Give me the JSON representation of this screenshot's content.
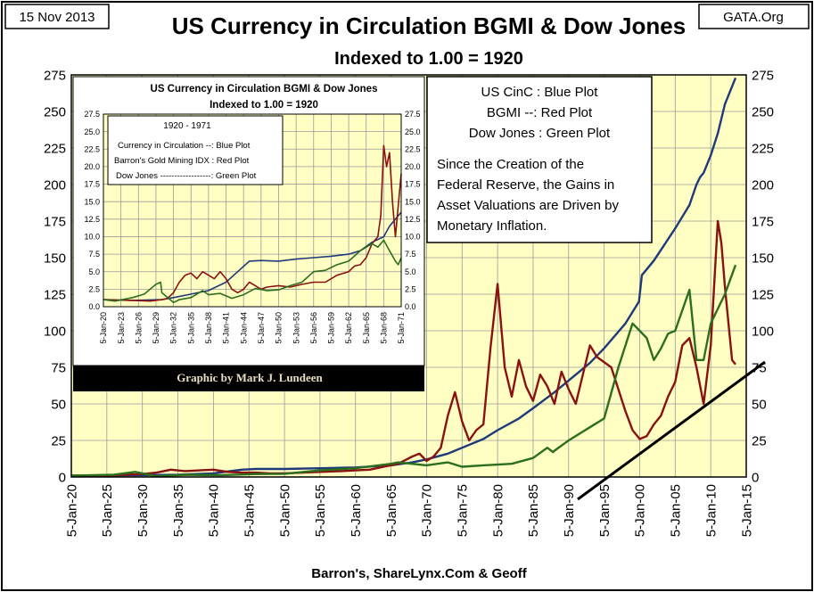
{
  "header": {
    "date_label": "15 Nov 2013",
    "source_label": "GATA.Org"
  },
  "chart_data": [
    {
      "type": "line",
      "title": "US Currency in Circulation BGMI & Dow Jones",
      "subtitle": "Indexed to 1.00 = 1920",
      "xlabel": "Barron's, ShareLynx.Com & Geoff",
      "ylabel": "",
      "xlim": [
        1920,
        2015
      ],
      "ylim": [
        0,
        275
      ],
      "y_ticks": [
        0,
        25,
        50,
        75,
        100,
        125,
        150,
        175,
        200,
        225,
        250,
        275
      ],
      "x_ticks": [
        "5-Jan-20",
        "5-Jan-25",
        "5-Jan-30",
        "5-Jan-35",
        "5-Jan-40",
        "5-Jan-45",
        "5-Jan-50",
        "5-Jan-55",
        "5-Jan-60",
        "5-Jan-65",
        "5-Jan-70",
        "5-Jan-75",
        "5-Jan-80",
        "5-Jan-85",
        "5-Jan-90",
        "5-Jan-95",
        "5-Jan-00",
        "5-Jan-05",
        "5-Jan-10",
        "5-Jan-15"
      ],
      "grid": true,
      "background": "#ffffc4",
      "legend_box": {
        "lines": [
          "US CinC :  Blue Plot",
          "BGMI --: Red Plot",
          "Dow Jones : Green Plot"
        ],
        "note_lines": [
          "Since the Creation of the",
          "Federal Reserve, the Gains in",
          "Asset Valuations are Driven by",
          "Monetary Inflation."
        ]
      },
      "credit_banner": "Graphic by Mark J. Lundeen",
      "series": [
        {
          "color": "#1f3a7a",
          "x": [
            1920,
            1930,
            1935,
            1940,
            1944,
            1946,
            1950,
            1955,
            1960,
            1965,
            1968,
            1970,
            1973,
            1975,
            1978,
            1980,
            1983,
            1985,
            1988,
            1990,
            1993,
            1995,
            1998,
            1999.9,
            2000.3,
            2002,
            2005,
            2007,
            2008,
            2008.5,
            2009,
            2010,
            2011,
            2012,
            2013.5
          ],
          "values": [
            1,
            1.2,
            1.5,
            2.5,
            5,
            5.5,
            5.5,
            6,
            6.5,
            8,
            10,
            12,
            16,
            20,
            26,
            32,
            40,
            47,
            58,
            66,
            78,
            88,
            105,
            120,
            138,
            148,
            170,
            186,
            200,
            205,
            208,
            220,
            235,
            255,
            273
          ]
        },
        {
          "color": "#8b1111",
          "x": [
            1920,
            1925,
            1930,
            1932,
            1934,
            1936,
            1938,
            1940,
            1942,
            1944,
            1946,
            1948,
            1950,
            1955,
            1958,
            1960,
            1962,
            1964,
            1966,
            1968,
            1969,
            1970,
            1971,
            1972,
            1973,
            1974,
            1975,
            1976,
            1977,
            1978,
            1979,
            1980,
            1981,
            1982,
            1983,
            1984,
            1985,
            1986,
            1987,
            1988,
            1989,
            1990,
            1991,
            1993,
            1994,
            1996,
            1997,
            1998,
            1999,
            2000,
            2001,
            2002,
            2003,
            2004,
            2005,
            2006,
            2007,
            2008,
            2009,
            2010,
            2011,
            2011.5,
            2012,
            2013,
            2013.5
          ],
          "values": [
            1,
            1,
            2,
            3,
            5,
            4,
            4.5,
            5,
            3.5,
            3,
            3,
            2.5,
            2.5,
            3.5,
            4,
            4.5,
            5,
            7,
            9,
            14,
            16,
            11,
            14,
            20,
            42,
            58,
            38,
            25,
            32,
            36,
            88,
            132,
            75,
            55,
            80,
            62,
            52,
            70,
            62,
            50,
            72,
            60,
            50,
            90,
            82,
            75,
            60,
            45,
            32,
            26,
            28,
            36,
            42,
            55,
            65,
            90,
            95,
            75,
            50,
            90,
            175,
            160,
            130,
            80,
            77
          ]
        },
        {
          "color": "#2d6e1e",
          "x": [
            1920,
            1926,
            1929,
            1932,
            1936,
            1941,
            1946,
            1950,
            1955,
            1960,
            1965,
            1966,
            1970,
            1973,
            1975,
            1978,
            1980,
            1982,
            1985,
            1987,
            1987.8,
            1988,
            1990,
            1993,
            1995,
            1997,
            1999,
            2000,
            2001,
            2002,
            2003,
            2004,
            2005,
            2007,
            2008,
            2009,
            2010,
            2011,
            2012,
            2013.5
          ],
          "values": [
            1,
            1.5,
            3.5,
            0.5,
            1.5,
            1.2,
            2,
            2.2,
            4.5,
            6,
            9,
            10,
            8,
            10,
            7,
            8,
            8.5,
            9,
            13,
            20,
            17,
            18,
            25,
            34,
            40,
            75,
            105,
            100,
            95,
            80,
            88,
            98,
            100,
            128,
            80,
            80,
            105,
            115,
            125,
            145
          ]
        }
      ]
    },
    {
      "type": "line",
      "title": "US Currency in Circulation BGMI & Dow Jones",
      "subtitle": "Indexed to 1.00 = 1920",
      "xlim": [
        1920,
        1971
      ],
      "ylim": [
        0,
        27.5
      ],
      "y_ticks": [
        0,
        2.5,
        5,
        7.5,
        10,
        12.5,
        15,
        17.5,
        20,
        22.5,
        25,
        27.5
      ],
      "x_ticks": [
        "5-Jan-20",
        "5-Jan-23",
        "5-Jan-26",
        "5-Jan-29",
        "5-Jan-32",
        "5-Jan-35",
        "5-Jan-38",
        "5-Jan-41",
        "5-Jan-44",
        "5-Jan-47",
        "5-Jan-50",
        "5-Jan-53",
        "5-Jan-56",
        "5-Jan-59",
        "5-Jan-62",
        "5-Jan-65",
        "5-Jan-68",
        "5-Jan-71"
      ],
      "legend_box": {
        "period": "1920 - 1971",
        "lines": [
          "Currency in Circulation --:  Blue Plot",
          "Barron's Gold Mining IDX : Red Plot",
          "Dow Jones ------------------: Green Plot"
        ]
      },
      "series": [
        {
          "color": "#1f3a7a",
          "x": [
            1920,
            1925,
            1930,
            1932,
            1935,
            1938,
            1941,
            1943,
            1945,
            1947,
            1950,
            1953,
            1956,
            1959,
            1962,
            1964,
            1966,
            1968,
            1969,
            1970,
            1971
          ],
          "values": [
            1,
            0.9,
            1,
            1.3,
            1.8,
            2.3,
            3.5,
            5,
            6.5,
            6.6,
            6.5,
            6.8,
            7,
            7.2,
            7.5,
            8,
            9.2,
            10,
            11.5,
            12.5,
            13.5
          ]
        },
        {
          "color": "#8b1111",
          "x": [
            1920,
            1925,
            1928,
            1930,
            1931,
            1932,
            1933,
            1934,
            1935,
            1936,
            1937,
            1938,
            1939,
            1940,
            1941,
            1942,
            1943,
            1944,
            1945,
            1946,
            1947,
            1948,
            1950,
            1952,
            1954,
            1956,
            1958,
            1960,
            1962,
            1963,
            1964,
            1965,
            1966,
            1967,
            1967.5,
            1968,
            1968.5,
            1969,
            1969.5,
            1970,
            1971
          ],
          "values": [
            1,
            0.9,
            0.8,
            1,
            1.2,
            2,
            3.5,
            4.5,
            4.8,
            4,
            5,
            4.5,
            4,
            5,
            4,
            2.5,
            2,
            2.5,
            3.5,
            3,
            2.5,
            2.8,
            3,
            2.8,
            3.2,
            3.5,
            3.5,
            4.5,
            5,
            5.8,
            6,
            7,
            9,
            10,
            13,
            23,
            20,
            22,
            15,
            10,
            19
          ]
        },
        {
          "color": "#2d6e1e",
          "x": [
            1920,
            1922,
            1925,
            1927,
            1929,
            1929.8,
            1930,
            1932,
            1933,
            1935,
            1937,
            1938,
            1940,
            1942,
            1944,
            1946,
            1948,
            1950,
            1952,
            1954,
            1956,
            1958,
            1960,
            1962,
            1964,
            1966,
            1967,
            1968,
            1969,
            1970,
            1970.5,
            1971
          ],
          "values": [
            1,
            0.8,
            1.3,
            1.8,
            3.2,
            3.5,
            2,
            0.6,
            1,
            1.3,
            2.3,
            1.7,
            1.9,
            1.2,
            1.7,
            2.6,
            2.3,
            2.4,
            3,
            3.5,
            5,
            5.2,
            6,
            6.5,
            8,
            9,
            8.5,
            9.5,
            8,
            6.5,
            6,
            7
          ]
        }
      ]
    }
  ]
}
